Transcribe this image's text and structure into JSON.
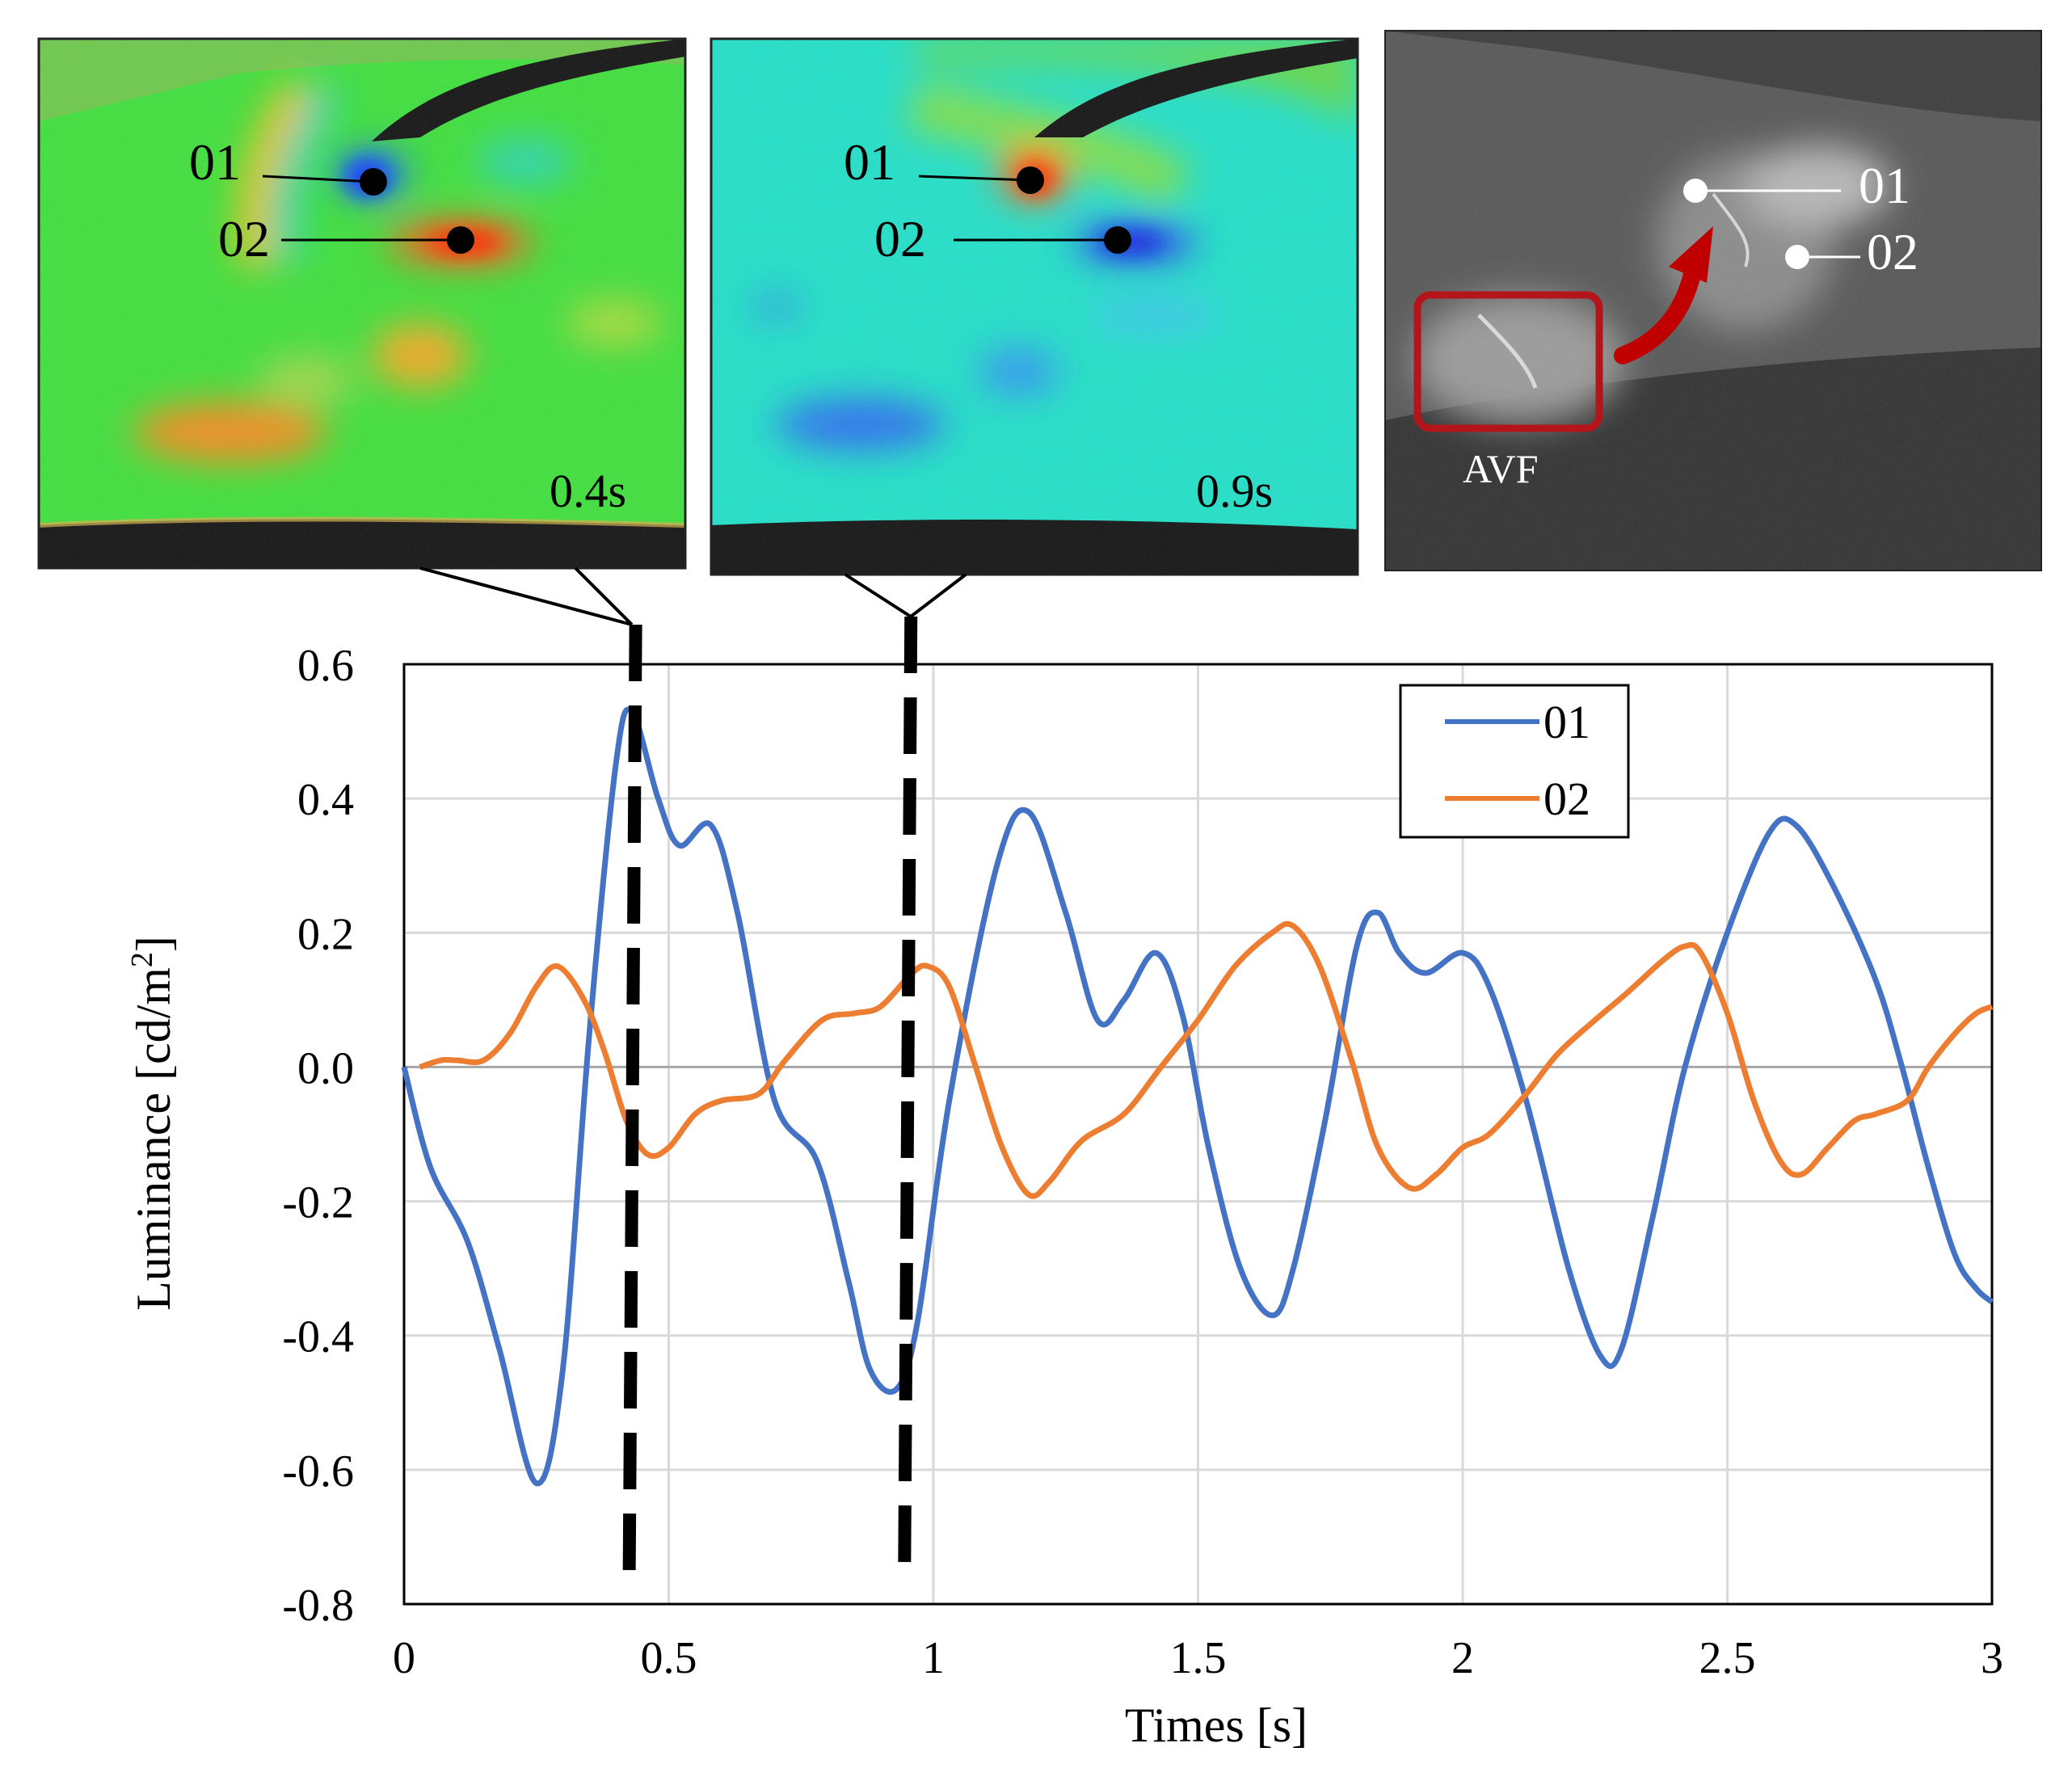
{
  "panels": {
    "left": {
      "time": "0.4s",
      "points": [
        "01",
        "02"
      ]
    },
    "middle": {
      "time": "0.9s",
      "points": [
        "01",
        "02"
      ]
    },
    "right": {
      "points": [
        "01",
        "02"
      ],
      "region": "AVF"
    }
  },
  "colors": {
    "series01": "#4472C4",
    "series02": "#ED7D31",
    "avf_box": "#B3151B",
    "arrow": "#C00000"
  },
  "chart_data": {
    "type": "line",
    "xlabel": "Times [s]",
    "ylabel": "Luminance [cd/m²]",
    "xlim": [
      0,
      3
    ],
    "ylim": [
      -0.8,
      0.6
    ],
    "xticks": [
      "0",
      "0.5",
      "1",
      "1.5",
      "2",
      "2.5",
      "3"
    ],
    "yticks": [
      "0.6",
      "0.4",
      "0.2",
      "0.0",
      "-0.2",
      "-0.4",
      "-0.6",
      "-0.8"
    ],
    "grid": true,
    "legend": "top-right",
    "markers_dashed": [
      0.43,
      0.95
    ],
    "series": [
      {
        "name": "01",
        "points": [
          [
            0,
            0
          ],
          [
            0.05,
            -0.15
          ],
          [
            0.12,
            -0.26
          ],
          [
            0.18,
            -0.42
          ],
          [
            0.25,
            -0.62
          ],
          [
            0.3,
            -0.45
          ],
          [
            0.35,
            0.05
          ],
          [
            0.4,
            0.45
          ],
          [
            0.43,
            0.53
          ],
          [
            0.48,
            0.4
          ],
          [
            0.52,
            0.33
          ],
          [
            0.58,
            0.36
          ],
          [
            0.63,
            0.23
          ],
          [
            0.7,
            -0.05
          ],
          [
            0.78,
            -0.14
          ],
          [
            0.84,
            -0.32
          ],
          [
            0.88,
            -0.45
          ],
          [
            0.93,
            -0.48
          ],
          [
            0.97,
            -0.38
          ],
          [
            1.03,
            -0.05
          ],
          [
            1.12,
            0.3
          ],
          [
            1.18,
            0.38
          ],
          [
            1.25,
            0.23
          ],
          [
            1.31,
            0.07
          ],
          [
            1.36,
            0.1
          ],
          [
            1.42,
            0.17
          ],
          [
            1.47,
            0.08
          ],
          [
            1.52,
            -0.12
          ],
          [
            1.58,
            -0.3
          ],
          [
            1.64,
            -0.37
          ],
          [
            1.68,
            -0.3
          ],
          [
            1.74,
            -0.08
          ],
          [
            1.8,
            0.18
          ],
          [
            1.84,
            0.23
          ],
          [
            1.88,
            0.17
          ],
          [
            1.93,
            0.14
          ],
          [
            2.0,
            0.17
          ],
          [
            2.05,
            0.12
          ],
          [
            2.12,
            -0.05
          ],
          [
            2.2,
            -0.3
          ],
          [
            2.26,
            -0.43
          ],
          [
            2.3,
            -0.42
          ],
          [
            2.36,
            -0.22
          ],
          [
            2.42,
            0.0
          ],
          [
            2.5,
            0.2
          ],
          [
            2.58,
            0.35
          ],
          [
            2.63,
            0.36
          ],
          [
            2.7,
            0.27
          ],
          [
            2.78,
            0.13
          ],
          [
            2.83,
            0.0
          ],
          [
            2.88,
            -0.15
          ],
          [
            2.93,
            -0.28
          ],
          [
            2.97,
            -0.33
          ],
          [
            3.0,
            -0.35
          ]
        ]
      },
      {
        "name": "02",
        "points": [
          [
            0.03,
            0
          ],
          [
            0.07,
            0.01
          ],
          [
            0.1,
            0.01
          ],
          [
            0.15,
            0.01
          ],
          [
            0.2,
            0.05
          ],
          [
            0.25,
            0.12
          ],
          [
            0.29,
            0.15
          ],
          [
            0.34,
            0.1
          ],
          [
            0.38,
            0.02
          ],
          [
            0.42,
            -0.08
          ],
          [
            0.46,
            -0.13
          ],
          [
            0.5,
            -0.12
          ],
          [
            0.55,
            -0.07
          ],
          [
            0.6,
            -0.05
          ],
          [
            0.67,
            -0.04
          ],
          [
            0.72,
            0.01
          ],
          [
            0.79,
            0.07
          ],
          [
            0.85,
            0.08
          ],
          [
            0.9,
            0.09
          ],
          [
            0.96,
            0.14
          ],
          [
            0.99,
            0.15
          ],
          [
            1.03,
            0.12
          ],
          [
            1.08,
            0.0
          ],
          [
            1.13,
            -0.12
          ],
          [
            1.18,
            -0.19
          ],
          [
            1.22,
            -0.17
          ],
          [
            1.28,
            -0.11
          ],
          [
            1.36,
            -0.07
          ],
          [
            1.43,
            0.0
          ],
          [
            1.5,
            0.07
          ],
          [
            1.57,
            0.15
          ],
          [
            1.64,
            0.2
          ],
          [
            1.68,
            0.21
          ],
          [
            1.73,
            0.15
          ],
          [
            1.79,
            0.01
          ],
          [
            1.84,
            -0.12
          ],
          [
            1.9,
            -0.18
          ],
          [
            1.95,
            -0.16
          ],
          [
            2.0,
            -0.12
          ],
          [
            2.05,
            -0.1
          ],
          [
            2.12,
            -0.04
          ],
          [
            2.18,
            0.02
          ],
          [
            2.25,
            0.07
          ],
          [
            2.31,
            0.11
          ],
          [
            2.38,
            0.16
          ],
          [
            2.42,
            0.18
          ],
          [
            2.45,
            0.17
          ],
          [
            2.5,
            0.08
          ],
          [
            2.55,
            -0.05
          ],
          [
            2.6,
            -0.14
          ],
          [
            2.64,
            -0.16
          ],
          [
            2.69,
            -0.12
          ],
          [
            2.74,
            -0.08
          ],
          [
            2.78,
            -0.07
          ],
          [
            2.84,
            -0.05
          ],
          [
            2.88,
            0.0
          ],
          [
            2.93,
            0.05
          ],
          [
            2.97,
            0.08
          ],
          [
            3.0,
            0.09
          ]
        ]
      }
    ]
  }
}
